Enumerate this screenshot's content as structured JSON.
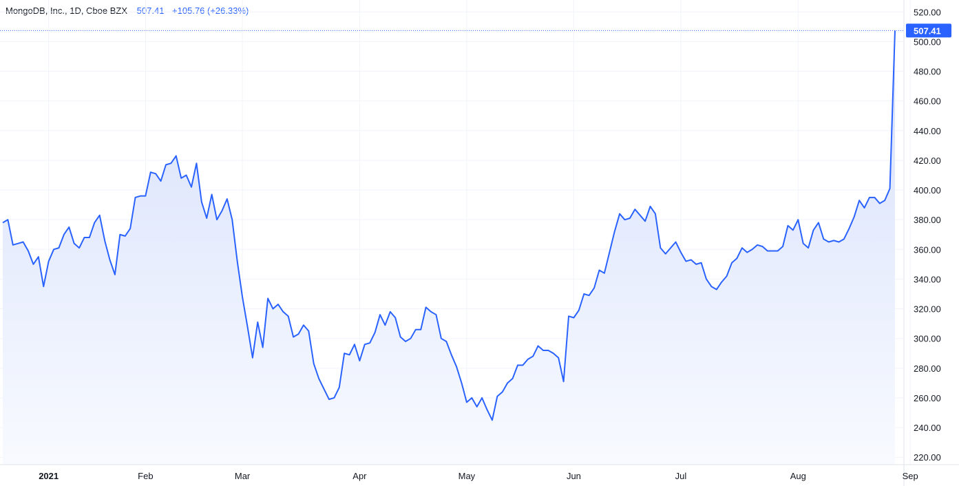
{
  "header": {
    "symbol": "MongoDB, Inc., 1D, Cboe BZX",
    "last_price": "507.41",
    "change": "+105.76 (+26.33%)"
  },
  "colors": {
    "line": "#2962ff",
    "fill_top": "#d6e0fb",
    "fill_bottom": "#f8faff",
    "grid": "#f0f3fa",
    "text": "#131722",
    "price_label_bg": "#2962ff"
  },
  "chart_data": {
    "type": "area",
    "y_axis": {
      "ticks": [
        "220.00",
        "240.00",
        "260.00",
        "280.00",
        "300.00",
        "320.00",
        "340.00",
        "360.00",
        "380.00",
        "400.00",
        "420.00",
        "440.00",
        "460.00",
        "480.00",
        "500.00",
        "520.00"
      ],
      "range": [
        215,
        528
      ],
      "position": "right"
    },
    "x_axis": {
      "labels": [
        {
          "label": "2021",
          "index": 9,
          "bold": true
        },
        {
          "label": "Feb",
          "index": 28
        },
        {
          "label": "Mar",
          "index": 47
        },
        {
          "label": "Apr",
          "index": 70
        },
        {
          "label": "May",
          "index": 91
        },
        {
          "label": "Jun",
          "index": 112
        },
        {
          "label": "Jul",
          "index": 133
        },
        {
          "label": "Aug",
          "index": 156
        },
        {
          "label": "Sep",
          "index": 178
        }
      ]
    },
    "last_value_label": "507.41",
    "grid": true,
    "series": [
      {
        "values": [
          378,
          380,
          363,
          364,
          365,
          359,
          350,
          355,
          335,
          352,
          360,
          361,
          370,
          375,
          364,
          361,
          368,
          368,
          378,
          383,
          366,
          353,
          343,
          370,
          369,
          374,
          395,
          396,
          396,
          412,
          411,
          406,
          417,
          418,
          423,
          408,
          410,
          402,
          418,
          392,
          381,
          397,
          380,
          386,
          394,
          380,
          352,
          328,
          308,
          287,
          311,
          294,
          327,
          320,
          323,
          318,
          315,
          301,
          303,
          309,
          305,
          283,
          273,
          266,
          259,
          260,
          267,
          290,
          289,
          296,
          285,
          296,
          297,
          304,
          316,
          309,
          318,
          314,
          301,
          298,
          300,
          306,
          306,
          321,
          318,
          316,
          300,
          298,
          289,
          281,
          270,
          257,
          260,
          254,
          260,
          252,
          245,
          261,
          264,
          270,
          273,
          282,
          282,
          286,
          288,
          295,
          292,
          292,
          290,
          287,
          271,
          315,
          314,
          319,
          330,
          329,
          334,
          346,
          344,
          358,
          372,
          384,
          380,
          381,
          387,
          383,
          379,
          389,
          384,
          361,
          357,
          361,
          365,
          358,
          352,
          353,
          350,
          351,
          340,
          335,
          333,
          338,
          342,
          351,
          354,
          361,
          358,
          360,
          363,
          362,
          359,
          359,
          359,
          362,
          376,
          373,
          380,
          364,
          361,
          373,
          378,
          367,
          365,
          366,
          365,
          367,
          374,
          382,
          393,
          388,
          395,
          395,
          391,
          393,
          401,
          507.41
        ]
      }
    ]
  }
}
